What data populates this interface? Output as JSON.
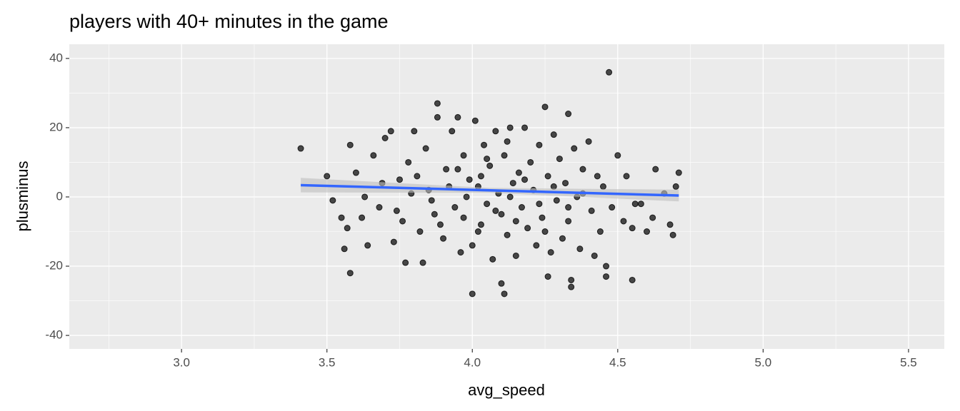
{
  "chart_data": {
    "type": "scatter",
    "title": "players with 40+ minutes in the game",
    "x_label": "avg_speed",
    "y_label": "plusminus",
    "xlim": [
      2.614,
      5.623
    ],
    "ylim": [
      -43.9,
      44.1
    ],
    "xticks": [
      {
        "value": 3,
        "label": "3.0"
      },
      {
        "value": 3.5,
        "label": "3.5"
      },
      {
        "value": 4,
        "label": "4.0"
      },
      {
        "value": 4.5,
        "label": "4.5"
      },
      {
        "value": 5,
        "label": "5.0"
      },
      {
        "value": 5.5,
        "label": "5.5"
      }
    ],
    "yticks": [
      -40,
      -20,
      0,
      20,
      40
    ],
    "x_minor_breaks": [
      2.75,
      3.25,
      3.75,
      4.25,
      4.75,
      5.25
    ],
    "y_minor_breaks": [
      -30,
      -10,
      10,
      30
    ],
    "grid": true,
    "color": "#000000",
    "x": [
      3.41,
      4.47,
      3.88,
      4.0,
      4.11,
      4.34,
      4.55,
      3.58,
      4.26,
      4.71,
      4.7,
      4.69,
      4.68,
      4.25,
      4.33,
      3.5,
      3.52,
      3.56,
      3.77,
      3.83,
      4.1,
      4.34,
      4.46,
      4.46,
      4.63,
      4.6,
      4.62,
      4.66,
      4.58,
      4.55,
      3.55,
      3.57,
      3.58,
      3.6,
      3.62,
      3.64,
      3.66,
      3.68,
      3.7,
      3.72,
      3.73,
      3.75,
      3.76,
      3.78,
      3.8,
      3.82,
      3.84,
      3.85,
      3.87,
      3.88,
      3.9,
      3.91,
      3.93,
      3.94,
      3.95,
      3.96,
      3.97,
      3.98,
      3.99,
      4.0,
      4.01,
      4.02,
      4.03,
      4.04,
      4.05,
      4.06,
      4.07,
      4.08,
      4.09,
      4.1,
      4.11,
      4.12,
      4.13,
      4.14,
      4.15,
      4.16,
      4.17,
      4.18,
      4.19,
      4.2,
      4.21,
      4.22,
      4.23,
      4.24,
      4.26,
      4.27,
      4.28,
      4.29,
      4.3,
      4.31,
      4.32,
      4.33,
      4.35,
      4.36,
      4.37,
      4.38,
      4.4,
      4.41,
      4.42,
      4.43,
      4.44,
      4.45,
      4.48,
      4.5,
      4.52,
      4.53,
      4.56,
      3.63,
      3.69,
      3.74,
      3.79,
      3.86,
      3.92,
      3.97,
      4.03,
      4.08,
      4.13,
      4.18,
      4.23,
      4.28,
      4.33,
      4.38,
      3.81,
      3.89,
      4.05,
      4.15,
      4.25,
      3.95,
      4.02,
      4.12
    ],
    "values": [
      14,
      36,
      27,
      -28,
      -28,
      -26,
      -24,
      -22,
      -23,
      7,
      3,
      -11,
      -8,
      26,
      24,
      6,
      -1,
      -15,
      -19,
      -19,
      -25,
      -24,
      -23,
      -20,
      8,
      -10,
      -6,
      1,
      -2,
      -9,
      -6,
      -9,
      15,
      7,
      -6,
      -14,
      12,
      -3,
      17,
      19,
      -13,
      5,
      -7,
      10,
      19,
      -10,
      14,
      2,
      -5,
      23,
      -12,
      8,
      19,
      -3,
      23,
      -16,
      12,
      0,
      5,
      -14,
      22,
      3,
      -8,
      15,
      -2,
      9,
      -18,
      19,
      1,
      -5,
      12,
      -11,
      20,
      4,
      -17,
      7,
      -3,
      20,
      -9,
      10,
      2,
      -14,
      15,
      -6,
      6,
      -16,
      18,
      -1,
      11,
      -12,
      4,
      -7,
      14,
      0,
      -15,
      8,
      16,
      -4,
      -17,
      6,
      -10,
      3,
      -3,
      12,
      -7,
      6,
      -2,
      0,
      4,
      -4,
      1,
      -1,
      3,
      -6,
      6,
      -4,
      0,
      5,
      -2,
      3,
      -3,
      1,
      6,
      -8,
      11,
      -7,
      -10,
      8,
      -10,
      16
    ],
    "trend": {
      "color": "#3366ff",
      "band_color": "#bebebe",
      "x": [
        3.41,
        4.06,
        4.71
      ],
      "values": [
        3.4,
        1.9,
        0.4
      ],
      "lower": [
        1.3,
        1.2,
        -1.3
      ],
      "upper": [
        5.5,
        2.6,
        2.1
      ]
    }
  }
}
